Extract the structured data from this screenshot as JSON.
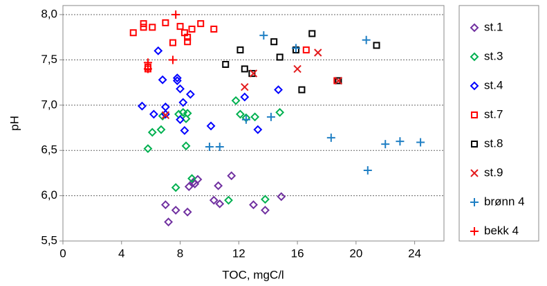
{
  "chart_data": {
    "type": "scatter",
    "xlabel": "TOC, mgC/l",
    "ylabel": "pH",
    "xlim": [
      0,
      26
    ],
    "xticks": [
      0,
      4,
      8,
      12,
      16,
      20,
      24
    ],
    "ylim": [
      5.5,
      8.1
    ],
    "yticks": [
      {
        "value": 5.5,
        "label": "5,5"
      },
      {
        "value": 6,
        "label": "6,0"
      },
      {
        "value": 6.5,
        "label": "6,5"
      },
      {
        "value": 7,
        "label": "7,0"
      },
      {
        "value": 7.5,
        "label": "7,5"
      },
      {
        "value": 8,
        "label": "8,0"
      }
    ],
    "grid": true,
    "legend": "right",
    "series": [
      {
        "name": "st.1",
        "color": "#7030a0",
        "marker": "diamond",
        "x": [
          7,
          7.7,
          7.2,
          8.5,
          8.6,
          9.0,
          9.2,
          8.9,
          10.3,
          10.7,
          10.6,
          11.5,
          13.0,
          13.8,
          14.9
        ],
        "y": [
          5.9,
          5.84,
          5.71,
          5.82,
          6.1,
          6.13,
          6.18,
          6.15,
          5.95,
          5.91,
          6.11,
          6.22,
          5.9,
          5.84,
          5.99
        ]
      },
      {
        "name": "st.3",
        "color": "#00b050",
        "marker": "diamond",
        "x": [
          5.8,
          6.1,
          6.7,
          6.8,
          7.7,
          8.4,
          8.2,
          8.4,
          8.5,
          7.9,
          8.8,
          11.8,
          12.1,
          12.5,
          13.1,
          14.8,
          11.3,
          13.8
        ],
        "y": [
          6.52,
          6.7,
          6.73,
          6.88,
          6.09,
          6.55,
          6.92,
          6.85,
          6.91,
          6.9,
          6.19,
          7.05,
          6.9,
          6.86,
          6.87,
          6.92,
          5.95,
          5.96
        ]
      },
      {
        "name": "st.4",
        "color": "#0000ff",
        "marker": "diamond",
        "x": [
          5.4,
          6.2,
          6.5,
          6.8,
          7.0,
          7.0,
          7.8,
          7.8,
          8.0,
          8.0,
          8.2,
          8.3,
          8.7,
          10.1,
          12.4,
          13.3,
          14.7
        ],
        "y": [
          6.99,
          6.9,
          7.6,
          7.28,
          6.98,
          6.9,
          7.3,
          7.27,
          7.18,
          6.84,
          7.03,
          6.72,
          7.12,
          6.77,
          7.09,
          6.73,
          7.17
        ]
      },
      {
        "name": "st.7",
        "color": "#ff0000",
        "marker": "square",
        "x": [
          4.8,
          5.5,
          5.5,
          5.8,
          5.8,
          6.1,
          7.0,
          7.5,
          8.0,
          8.3,
          8.5,
          8.5,
          8.8,
          9.4,
          10.3,
          16.6,
          18.7
        ],
        "y": [
          7.8,
          7.9,
          7.86,
          7.4,
          7.42,
          7.86,
          7.91,
          7.69,
          7.87,
          7.8,
          7.75,
          7.7,
          7.84,
          7.9,
          7.84,
          7.61,
          7.27
        ]
      },
      {
        "name": "st.8",
        "color": "#000000",
        "marker": "square",
        "x": [
          11.1,
          12.1,
          12.4,
          12.9,
          14.4,
          14.8,
          15.9,
          16.3,
          17.0,
          18.8,
          21.4
        ],
        "y": [
          7.45,
          7.61,
          7.4,
          7.35,
          7.7,
          7.53,
          7.61,
          7.17,
          7.79,
          7.27,
          7.66
        ]
      },
      {
        "name": "st.9",
        "color": "#e31a1c",
        "marker": "x",
        "x": [
          7.0,
          12.4,
          13.0,
          16.0,
          17.4,
          18.8
        ],
        "y": [
          6.89,
          7.2,
          7.35,
          7.4,
          7.58,
          7.27
        ]
      },
      {
        "name": "brønn 4",
        "color": "#1f7fc4",
        "marker": "plus",
        "x": [
          10.0,
          10.7,
          12.5,
          13.7,
          14.2,
          15.9,
          18.3,
          20.7,
          20.8,
          22.0,
          23.0,
          24.4
        ],
        "y": [
          6.54,
          6.54,
          6.84,
          7.77,
          6.87,
          7.63,
          6.64,
          7.72,
          6.28,
          6.57,
          6.6,
          6.59
        ]
      },
      {
        "name": "bekk 4",
        "color": "#ff0000",
        "marker": "plus",
        "x": [
          5.8,
          5.8,
          7.5,
          7.7
        ],
        "y": [
          7.47,
          7.4,
          7.5,
          8.0
        ]
      }
    ]
  }
}
